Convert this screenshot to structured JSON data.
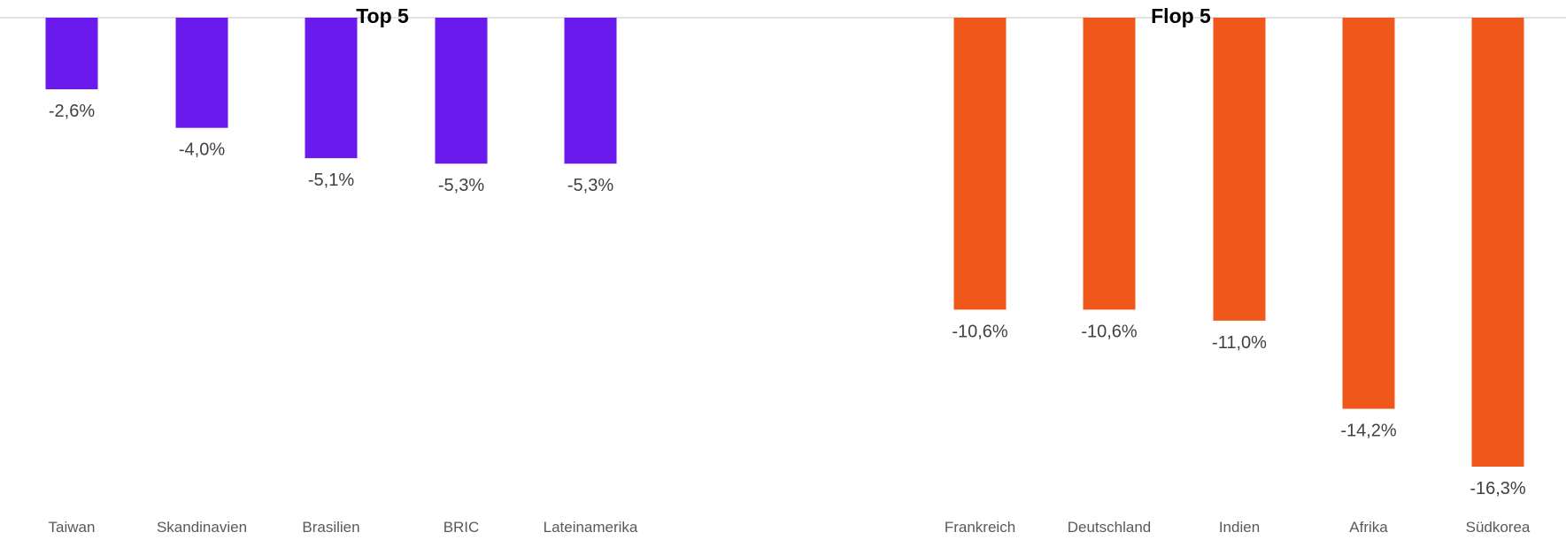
{
  "chart_data": {
    "type": "bar",
    "groups": [
      {
        "title": "Top 5",
        "color": "#6a1aed",
        "categories": [
          "Taiwan",
          "Skandinavien",
          "Brasilien",
          "BRIC",
          "Lateinamerika"
        ],
        "values": [
          -2.6,
          -4.0,
          -5.1,
          -5.3,
          -5.3
        ],
        "labels": [
          "-2,6%",
          "-4,0%",
          "-5,1%",
          "-5,3%",
          "-5,3%"
        ]
      },
      {
        "title": "Flop 5",
        "color": "#f0571b",
        "categories": [
          "Frankreich",
          "Deutschland",
          "Indien",
          "Afrika",
          "Südkorea"
        ],
        "values": [
          -10.6,
          -10.6,
          -11.0,
          -14.2,
          -16.3
        ],
        "labels": [
          "-10,6%",
          "-10,6%",
          "-11,0%",
          "-14,2%",
          "-16,3%"
        ]
      }
    ],
    "ylim": [
      -16.3,
      0
    ],
    "axis_color": "#d9d9d9",
    "grid": false,
    "legend": "none"
  }
}
